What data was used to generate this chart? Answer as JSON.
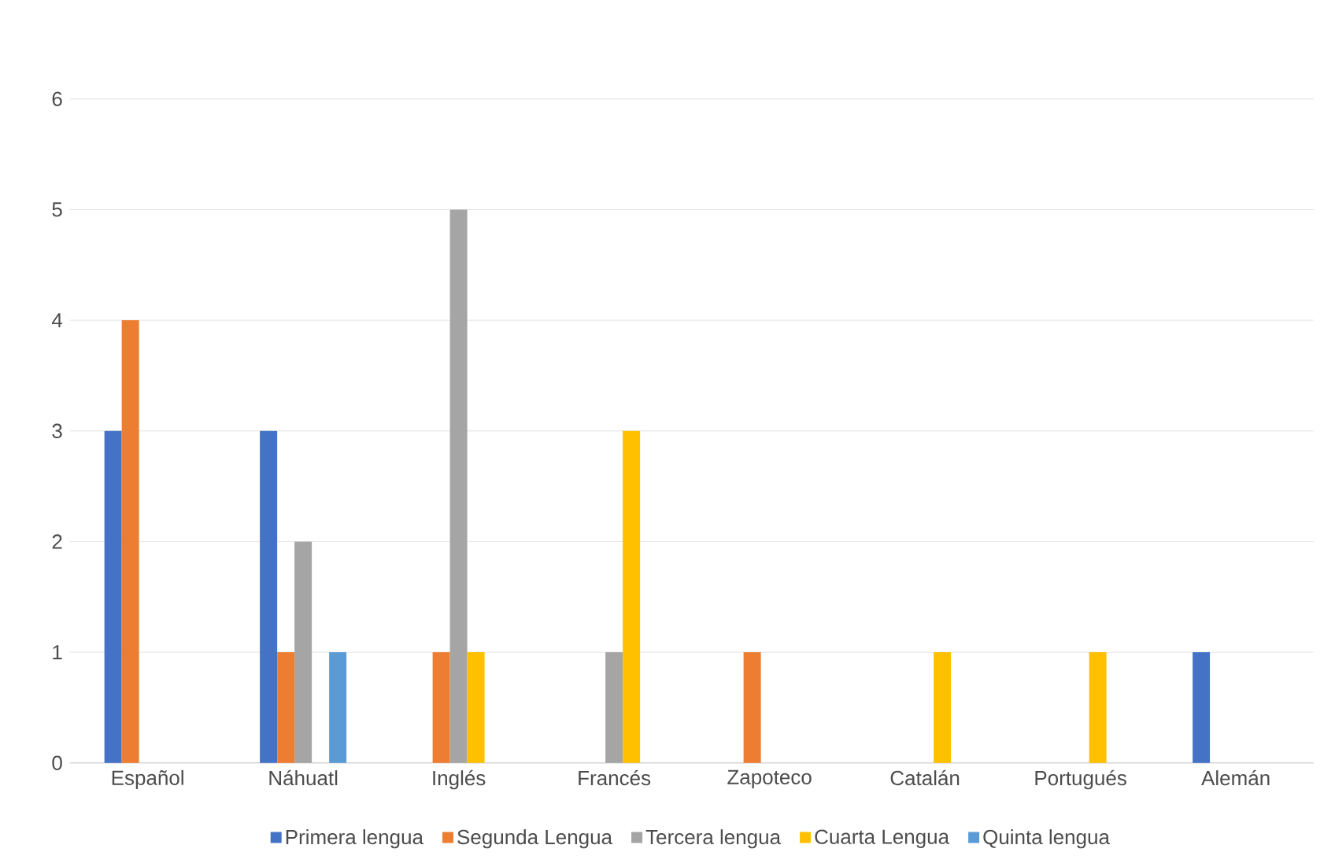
{
  "chart_data": {
    "type": "bar",
    "categories": [
      "Español",
      "Náhuatl",
      "Inglés",
      "Francés",
      "Zapoteco",
      "Catalán",
      "Portugués",
      "Alemán"
    ],
    "series": [
      {
        "name": "Primera lengua",
        "color": "#4472c4",
        "values": [
          3,
          3,
          0,
          0,
          0,
          0,
          0,
          1
        ]
      },
      {
        "name": "Segunda Lengua",
        "color": "#ed7d31",
        "values": [
          4,
          1,
          1,
          0,
          1,
          0,
          0,
          0
        ]
      },
      {
        "name": "Tercera lengua",
        "color": "#a5a5a5",
        "values": [
          0,
          2,
          5,
          1,
          0,
          0,
          0,
          0
        ]
      },
      {
        "name": "Cuarta Lengua",
        "color": "#ffc000",
        "values": [
          0,
          0,
          1,
          3,
          0,
          1,
          1,
          0
        ]
      },
      {
        "name": "Quinta lengua",
        "color": "#5b9bd5",
        "values": [
          0,
          1,
          0,
          0,
          0,
          0,
          0,
          0
        ]
      }
    ],
    "ylim": [
      0,
      6
    ],
    "yticks": [
      0,
      1,
      2,
      3,
      4,
      5,
      6
    ],
    "grid": "y",
    "legend": "bottom"
  }
}
